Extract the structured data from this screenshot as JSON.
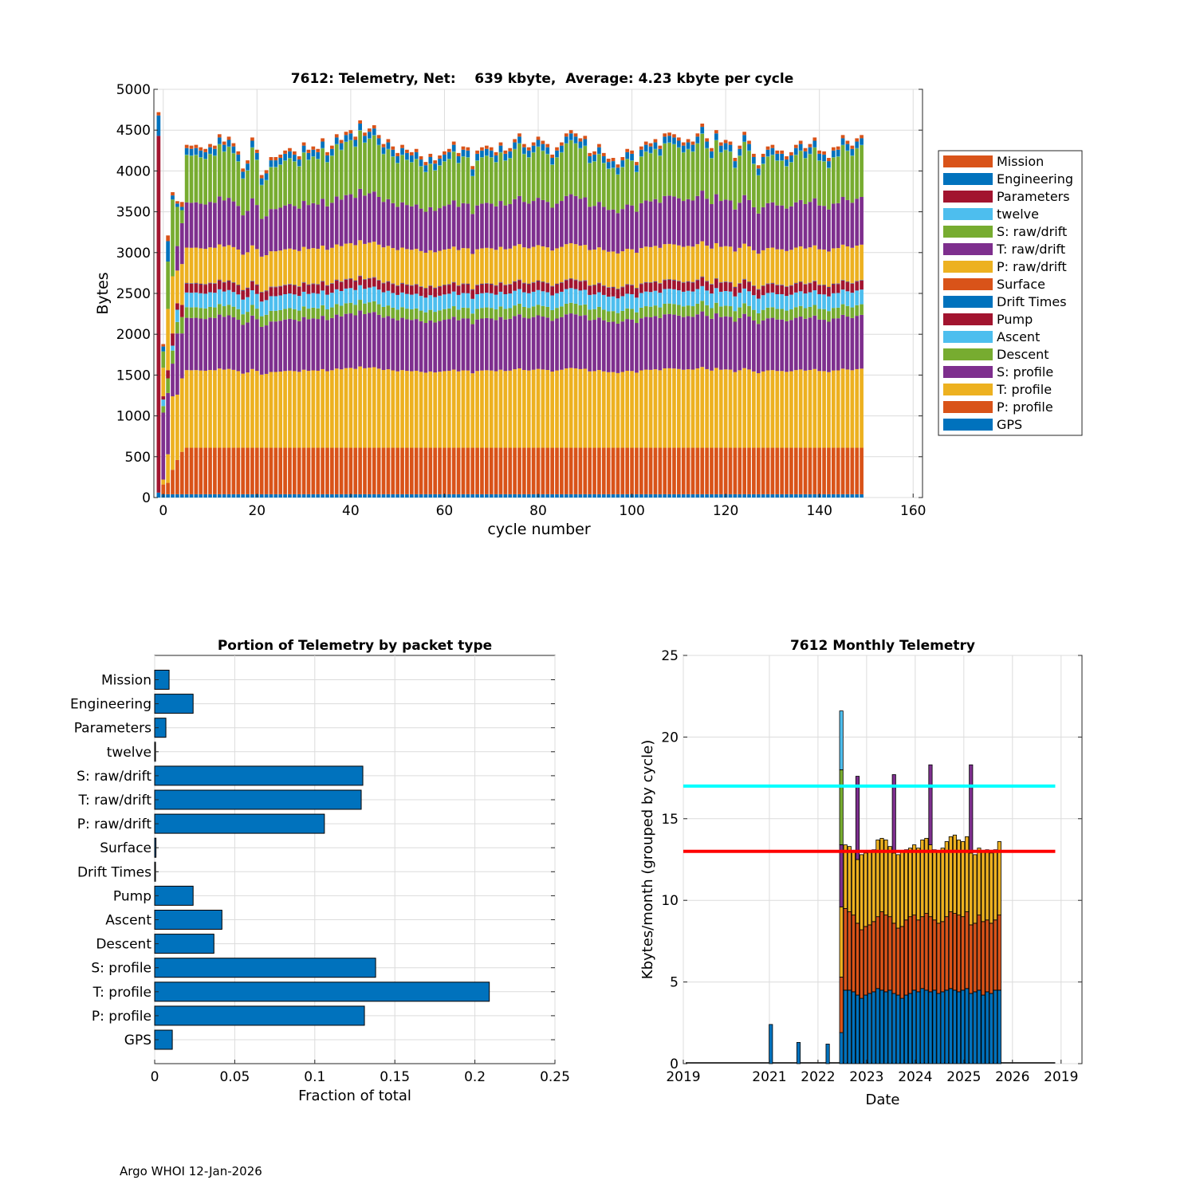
{
  "footer": "Argo WHOI 12-Jan-2026",
  "colors": {
    "Mission": "#d95319",
    "Engineering": "#0072bd",
    "Parameters": "#a2142f",
    "twelve": "#4dbeee",
    "S: raw/drift": "#77ac30",
    "T: raw/drift": "#7e2f8e",
    "P: raw/drift": "#edb120",
    "Surface": "#d95319",
    "Drift Times": "#0072bd",
    "Pump": "#a2142f",
    "Ascent": "#4dbeee",
    "Descent": "#77ac30",
    "S: profile": "#7e2f8e",
    "T: profile": "#edb120",
    "P: profile": "#d95319",
    "GPS": "#0072bd",
    "bar": "#0072bd",
    "cyan_line": "#00ffff",
    "red_line": "#ff0000"
  },
  "chart_data": [
    {
      "type": "bar",
      "stacked": true,
      "title": "7612: Telemetry, Net:    639 kbyte,  Average: 4.23 kbyte per cycle",
      "xlabel": "cycle number",
      "ylabel": "Bytes",
      "xlim": [
        -2,
        162
      ],
      "ylim": [
        0,
        5000
      ],
      "xticks": [
        "0",
        "20",
        "40",
        "60",
        "80",
        "100",
        "120",
        "140",
        "160"
      ],
      "yticks": [
        "0",
        "500",
        "1000",
        "1500",
        "2000",
        "2500",
        "3000",
        "3500",
        "4000",
        "4500",
        "5000"
      ],
      "legend_position": "right-outside",
      "legend": [
        "Mission",
        "Engineering",
        "Parameters",
        "twelve",
        "S: raw/drift",
        "T: raw/drift",
        "P: raw/drift",
        "Surface",
        "Drift Times",
        "Pump",
        "Ascent",
        "Descent",
        "S: profile",
        "T: profile",
        "P: profile",
        "GPS"
      ],
      "stack_order": [
        "GPS",
        "P: profile",
        "T: profile",
        "S: profile",
        "Descent",
        "Ascent",
        "Pump",
        "Drift Times",
        "Surface",
        "P: raw/drift",
        "T: raw/drift",
        "S: raw/drift",
        "twelve",
        "Parameters",
        "Engineering",
        "Mission"
      ],
      "typical_cycle": {
        "GPS": 40,
        "P: profile": 570,
        "T: profile": 930,
        "S: profile": 620,
        "Descent": 130,
        "Ascent": 180,
        "Pump": 110,
        "Drift Times": 5,
        "Surface": 5,
        "P: raw/drift": 430,
        "T: raw/drift": 520,
        "S: raw/drift": 520,
        "twelve": 2,
        "Parameters": 0,
        "Engineering": 80,
        "Mission": 40
      },
      "special_cycles": [
        {
          "cycle": -1,
          "segments": {
            "GPS": 60,
            "Parameters": 4370,
            "Engineering": 250,
            "Mission": 40
          }
        },
        {
          "cycle": 0,
          "segments": {
            "GPS": 40,
            "P: profile": 120,
            "T: profile": 60,
            "Ascent": 80,
            "Descent": 80,
            "Pump": 40,
            "S: profile": 820,
            "P: raw/drift": 350,
            "S: raw/drift": 200,
            "Engineering": 60,
            "Mission": 30
          }
        },
        {
          "cycle": 1,
          "segments": {
            "GPS": 40,
            "P: profile": 140,
            "T: profile": 350,
            "Descent": 180,
            "Pump": 100,
            "S: profile": 750,
            "P: raw/drift": 750,
            "S: raw/drift": 580,
            "Engineering": 250,
            "Mission": 70
          }
        },
        {
          "cycle": 2,
          "segments": {
            "GPS": 40,
            "P: profile": 300,
            "T: profile": 900,
            "Ascent": 60,
            "Descent": 160,
            "Pump": 150,
            "S: profile": 400,
            "P: raw/drift": 700,
            "S: raw/drift": 940,
            "Engineering": 50,
            "Mission": 40
          }
        },
        {
          "cycle": 3,
          "segments": {
            "GPS": 40,
            "P: profile": 420,
            "T: profile": 800,
            "Ascent": 150,
            "Descent": 140,
            "Pump": 80,
            "S: profile": 750,
            "P: raw/drift": 400,
            "T: raw/drift": 300,
            "S: raw/drift": 480,
            "Engineering": 40,
            "Mission": 30
          }
        },
        {
          "cycle": 4,
          "segments": {
            "GPS": 40,
            "P: profile": 520,
            "T: profile": 900,
            "Descent": 200,
            "Pump": 150,
            "S: profile": 550,
            "P: raw/drift": 500,
            "T: raw/drift": 500,
            "S: raw/drift": 160,
            "Engineering": 40,
            "Mission": 60
          }
        }
      ],
      "cycles_range": [
        -1,
        149
      ],
      "total_bytes": [
        4720,
        1880,
        3230,
        3710,
        3610,
        4310,
        4320,
        4310,
        4320,
        4290,
        4270,
        4330,
        4310,
        4450,
        4360,
        4420,
        4340,
        4240,
        4030,
        4130,
        4410,
        4260,
        3950,
        4010,
        4170,
        4170,
        4200,
        4250,
        4280,
        4240,
        4180,
        4350,
        4260,
        4300,
        4270,
        4400,
        4230,
        4310,
        4450,
        4380,
        4480,
        4500,
        4420,
        4620,
        4470,
        4520,
        4560,
        4440,
        4330,
        4390,
        4300,
        4220,
        4320,
        4260,
        4230,
        4270,
        4180,
        4110,
        4210,
        4130,
        4190,
        4240,
        4270,
        4360,
        4220,
        4300,
        4290,
        4060,
        4250,
        4290,
        4310,
        4290,
        4230,
        4350,
        4250,
        4280,
        4390,
        4460,
        4330,
        4290,
        4350,
        4420,
        4370,
        4330,
        4200,
        4290,
        4350,
        4460,
        4500,
        4460,
        4400,
        4430,
        4220,
        4240,
        4330,
        4220,
        4150,
        4160,
        4080,
        4170,
        4270,
        4250,
        4110,
        4300,
        4360,
        4340,
        4390,
        4310,
        4460,
        4470,
        4450,
        4410,
        4350,
        4390,
        4360,
        4460,
        4580,
        4400,
        4280,
        4500,
        4350,
        4380,
        4360,
        4160,
        4310,
        4480,
        4370,
        4210,
        4070,
        4210,
        4300,
        4320,
        4250,
        4250,
        4180,
        4230,
        4320,
        4370,
        4280,
        4330,
        4410,
        4250,
        4240,
        4160,
        4290,
        4300,
        4440,
        4370,
        4310,
        4400,
        4440
      ]
    },
    {
      "type": "bar",
      "orientation": "horizontal",
      "title": "Portion of Telemetry by packet type",
      "xlabel": "Fraction of total",
      "ylabel": "",
      "xlim": [
        0,
        0.25
      ],
      "xticks": [
        "0",
        "0.05",
        "0.1",
        "0.15",
        "0.2",
        "0.25"
      ],
      "categories": [
        "Mission",
        "Engineering",
        "Parameters",
        "twelve",
        "S: raw/drift",
        "T: raw/drift",
        "P: raw/drift",
        "Surface",
        "Drift Times",
        "Pump",
        "Ascent",
        "Descent",
        "S: profile",
        "T: profile",
        "P: profile",
        "GPS"
      ],
      "values": [
        0.009,
        0.024,
        0.007,
        0.0005,
        0.13,
        0.129,
        0.106,
        0.0008,
        0.0005,
        0.024,
        0.042,
        0.037,
        0.138,
        0.209,
        0.131,
        0.011
      ]
    },
    {
      "type": "bar",
      "stacked": true,
      "title": "7612 Monthly Telemetry",
      "xlabel": "Date",
      "ylabel": "Kbytes/month (grouped by cycle)",
      "ylim": [
        0,
        25
      ],
      "yticks": [
        "0",
        "5",
        "10",
        "15",
        "20",
        "25"
      ],
      "xticks": [
        "2019",
        "2021",
        "2022",
        "2023",
        "2024",
        "2025",
        "2026",
        "2019"
      ],
      "x_range_years": [
        2019.0,
        2027.2
      ],
      "xtick_years": [
        2019.0,
        2020.77,
        2021.77,
        2022.77,
        2023.77,
        2024.77,
        2025.77,
        2026.77
      ],
      "hlines": [
        {
          "y": 17,
          "color": "cyan"
        },
        {
          "y": 13,
          "color": "red"
        }
      ],
      "early_spikes": [
        {
          "year": 2020.8,
          "value": 2.4
        },
        {
          "year": 2021.37,
          "value": 1.3
        },
        {
          "year": 2021.97,
          "value": 1.2
        }
      ],
      "start_year": 2022.25,
      "months": 40,
      "base_blue": [
        1.9,
        4.5,
        4.5,
        4.4,
        4.2,
        4.0,
        4.2,
        4.3,
        4.4,
        4.6,
        4.5,
        4.4,
        4.5,
        4.3,
        4.2,
        4.0,
        4.2,
        4.3,
        4.5,
        4.4,
        4.6,
        4.5,
        4.4,
        4.5,
        4.3,
        4.4,
        4.5,
        4.6,
        4.5,
        4.4,
        4.5,
        4.6,
        4.3,
        4.4,
        4.5,
        4.2,
        4.4,
        4.3,
        4.5,
        4.5
      ],
      "orange_top": [
        5.3,
        9.5,
        9.3,
        9.1,
        8.6,
        8.2,
        8.4,
        8.5,
        8.7,
        9.0,
        9.3,
        9.1,
        9.0,
        8.6,
        8.3,
        8.4,
        8.8,
        9.0,
        9.1,
        8.8,
        9.0,
        9.2,
        9.0,
        8.8,
        8.6,
        8.7,
        9.0,
        9.3,
        9.2,
        9.1,
        9.0,
        9.3,
        8.5,
        8.6,
        9.1,
        8.7,
        8.8,
        8.6,
        8.8,
        9.1
      ],
      "yellow_top": [
        9.6,
        13.4,
        13.3,
        13.0,
        12.5,
        12.8,
        12.9,
        13.0,
        13.1,
        13.7,
        13.8,
        13.7,
        13.3,
        12.9,
        12.8,
        13.0,
        13.1,
        13.2,
        13.4,
        13.2,
        13.7,
        13.8,
        13.4,
        13.1,
        13.0,
        13.2,
        13.6,
        13.9,
        14.0,
        13.7,
        13.6,
        13.9,
        12.9,
        12.8,
        13.2,
        13.0,
        13.1,
        12.9,
        13.1,
        13.6
      ],
      "top_spikes": [
        {
          "index": 0,
          "green_to": 13.4,
          "green_top": 18.0,
          "blue_top": 21.6
        },
        {
          "index": 4,
          "purple_top": 17.6
        },
        {
          "index": 13,
          "purple_top": 17.7
        },
        {
          "index": 22,
          "purple_top": 18.3
        },
        {
          "index": 32,
          "purple_top": 18.3
        }
      ],
      "end_year": 2026.15
    }
  ]
}
